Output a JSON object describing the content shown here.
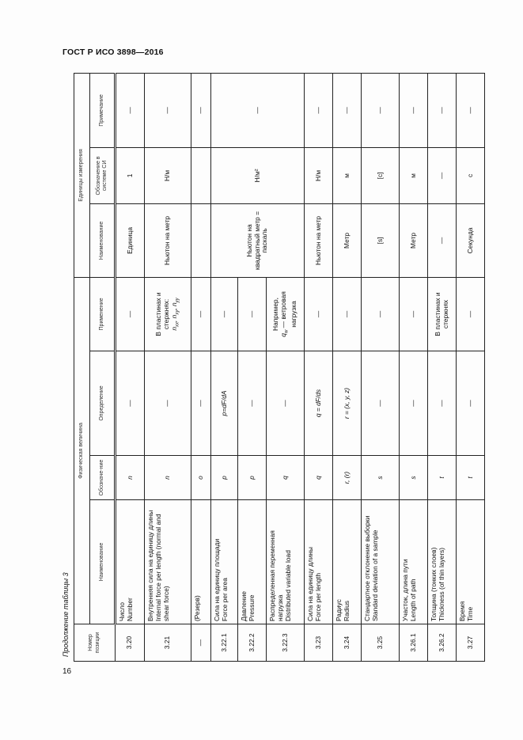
{
  "document": {
    "title": "ГОСТ Р ИСО 3898—2016",
    "page_number": "16",
    "caption": "Продолжение таблицы 3"
  },
  "headers": {
    "number": "Номер позиции",
    "physical_group": "Физическая величина",
    "units_group": "Единицы измерения",
    "name": "Наименование",
    "symbol": "Обозначе-ние",
    "definition": "Определение",
    "application": "Применение",
    "unit_name": "Наименование",
    "unit_symbol": "Обозначение в системе СИ",
    "unit_note": "Примечание"
  },
  "rows": [
    {
      "num": "3.20",
      "name_ru": "Число",
      "name_en": "Number",
      "sym": "n",
      "def": "—",
      "note": "—",
      "unit_name": "Единица",
      "unit_sym": "1",
      "unit_note": "—"
    },
    {
      "num": "3.21",
      "name_ru": "Внутренняя сила на единицу длины",
      "name_en": "Internal force per length (normal and shear force)",
      "sym": "n",
      "def": "—",
      "note": "В пластинах и стержнях:",
      "note_symbols": [
        [
          "n",
          "xx"
        ],
        [
          "n",
          "xy"
        ],
        [
          "n",
          "yy"
        ]
      ],
      "unit_name": "Ньютон на метр",
      "unit_sym": "Н/м",
      "unit_note": "—"
    },
    {
      "num": "—",
      "name_ru": "(Резерв)",
      "name_en": "",
      "sym": "o",
      "def": "—",
      "note": "—",
      "unit_name": "",
      "unit_sym": "",
      "unit_note": "—"
    },
    {
      "num": "3.22.1",
      "name_ru": "Сила на единицу площади",
      "name_en": "Force per area",
      "sym": "p",
      "def": "p=dF/dA",
      "note": "—",
      "unit_name": "Ньютон на квадратный метр = паскаль",
      "unit_sym": "Н/м²",
      "unit_note": "—",
      "unit_rowspan": 3
    },
    {
      "num": "3.22.2",
      "name_ru": "Давление",
      "name_en": "Pressure",
      "sym": "p",
      "def": "—",
      "note": "—"
    },
    {
      "num": "3.22.3",
      "name_ru": "Распределенная переменная нагрузка",
      "name_en": "Distributed variable load",
      "sym": "q",
      "def": "—",
      "note": "Например,",
      "note_symbols": [
        [
          "q",
          "w"
        ]
      ],
      "note_after": "— ветровая нагрузка"
    },
    {
      "num": "3.23",
      "name_ru": "Сила на единицу длины",
      "name_en": "Force per length",
      "sym": "q",
      "def": "q = dF/ds",
      "note": "—",
      "unit_name": "Ньютон на метр",
      "unit_sym": "Н/м",
      "unit_note": "—"
    },
    {
      "num": "3.24",
      "name_ru": "Радиус",
      "name_en": "Radius",
      "sym": "r, (r)",
      "def": "r = (x, y, z)",
      "note": "—",
      "unit_name": "Метр",
      "unit_sym": "м",
      "unit_note": "—"
    },
    {
      "num": "3.25",
      "name_ru": "Стандартное отклонение выборки",
      "name_en": "Standard deviation of a sample",
      "sym": "s",
      "def": "—",
      "note": "—",
      "unit_name": "[s]",
      "unit_sym": "[с]",
      "unit_note": "—"
    },
    {
      "num": "3.26.1",
      "name_ru": "Участок, длина пути",
      "name_en": "Length of path",
      "sym": "s",
      "def": "—",
      "note": "—",
      "unit_name": "Метр",
      "unit_sym": "м",
      "unit_note": "—"
    },
    {
      "num": "3.26.2",
      "name_ru": "Толщина (тонких слоев)",
      "name_en": "Thickness (of thin layers)",
      "sym": "t",
      "def": "—",
      "note": "В пластинах и стержнях",
      "unit_name": "—",
      "unit_sym": "—",
      "unit_note": "—"
    },
    {
      "num": "3.27",
      "name_ru": "Время",
      "name_en": "Time",
      "sym": "t",
      "def": "—",
      "note": "—",
      "unit_name": "Секунда",
      "unit_sym": "с",
      "unit_note": "—"
    }
  ]
}
